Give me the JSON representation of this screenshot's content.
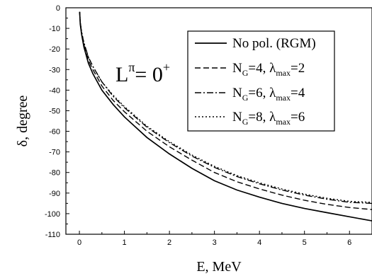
{
  "chart_data": {
    "type": "line",
    "xlabel": "E, MeV",
    "ylabel": "δ, degree",
    "xlim": [
      -0.3,
      6.5
    ],
    "ylim": [
      -110,
      0
    ],
    "xticks": [
      0,
      1,
      2,
      3,
      4,
      5,
      6
    ],
    "yticks": [
      0,
      -10,
      -20,
      -30,
      -40,
      -50,
      -60,
      -70,
      -80,
      -90,
      -100,
      -110
    ],
    "grid": false,
    "legend_position": "top-right",
    "annotation": {
      "base": "L",
      "sup": "π",
      "rest": "= 0",
      "sup2": "+"
    },
    "series": [
      {
        "name": "No pol. (RGM)",
        "name_parts": [
          {
            "t": "No pol. (RGM)",
            "s": "n"
          }
        ],
        "style": "solid",
        "x": [
          0.005,
          0.02,
          0.05,
          0.1,
          0.2,
          0.3,
          0.5,
          0.75,
          1.0,
          1.5,
          2.0,
          2.5,
          3.0,
          3.5,
          4.0,
          4.5,
          5.0,
          5.5,
          6.0,
          6.5
        ],
        "y": [
          -2,
          -8,
          -13,
          -19,
          -27,
          -32,
          -40,
          -47,
          -53,
          -63,
          -71,
          -78,
          -84,
          -88.5,
          -92,
          -95,
          -97.5,
          -99.5,
          -101.5,
          -103.5
        ]
      },
      {
        "name": "N_G=4, λ_max=2",
        "name_parts": [
          {
            "t": "N",
            "s": "n"
          },
          {
            "t": "G",
            "s": "sub"
          },
          {
            "t": "=4, λ",
            "s": "n"
          },
          {
            "t": "max",
            "s": "sub"
          },
          {
            "t": "=2",
            "s": "n"
          }
        ],
        "style": "dash",
        "x": [
          0.005,
          0.02,
          0.05,
          0.1,
          0.2,
          0.3,
          0.5,
          0.75,
          1.0,
          1.5,
          2.0,
          2.5,
          3.0,
          3.5,
          4.0,
          4.5,
          5.0,
          5.5,
          6.0,
          6.5
        ],
        "y": [
          -2,
          -7.5,
          -12.5,
          -18,
          -25.5,
          -30,
          -38,
          -45,
          -50.5,
          -60,
          -67.5,
          -74,
          -80,
          -84.5,
          -88,
          -91,
          -93.5,
          -95.5,
          -97,
          -98
        ]
      },
      {
        "name": "N_G=6, λ_max=4",
        "name_parts": [
          {
            "t": "N",
            "s": "n"
          },
          {
            "t": "G",
            "s": "sub"
          },
          {
            "t": "=6, λ",
            "s": "n"
          },
          {
            "t": "max",
            "s": "sub"
          },
          {
            "t": "=4",
            "s": "n"
          }
        ],
        "style": "dashdot",
        "x": [
          0.005,
          0.02,
          0.05,
          0.1,
          0.2,
          0.3,
          0.5,
          0.75,
          1.0,
          1.5,
          2.0,
          2.5,
          3.0,
          3.5,
          4.0,
          4.5,
          5.0,
          5.5,
          6.0,
          6.5
        ],
        "y": [
          -2,
          -7,
          -12,
          -17,
          -24,
          -28.5,
          -36,
          -43,
          -48.5,
          -58,
          -65.5,
          -72,
          -77.5,
          -82,
          -85.5,
          -88.5,
          -91,
          -93,
          -94.5,
          -95
        ]
      },
      {
        "name": "N_G=8, λ_max=6",
        "name_parts": [
          {
            "t": "N",
            "s": "n"
          },
          {
            "t": "G",
            "s": "sub"
          },
          {
            "t": "=8, λ",
            "s": "n"
          },
          {
            "t": "max",
            "s": "sub"
          },
          {
            "t": "=6",
            "s": "n"
          }
        ],
        "style": "dot",
        "x": [
          0.005,
          0.02,
          0.05,
          0.1,
          0.2,
          0.3,
          0.5,
          0.75,
          1.0,
          1.5,
          2.0,
          2.5,
          3.0,
          3.5,
          4.0,
          4.5,
          5.0,
          5.5,
          6.0,
          6.5
        ],
        "y": [
          -2,
          -7,
          -11.5,
          -17,
          -24,
          -28.5,
          -36,
          -42.5,
          -48,
          -57.5,
          -65,
          -71.5,
          -77,
          -81.5,
          -85,
          -88,
          -90.5,
          -92.5,
          -94,
          -94.5
        ]
      }
    ]
  }
}
